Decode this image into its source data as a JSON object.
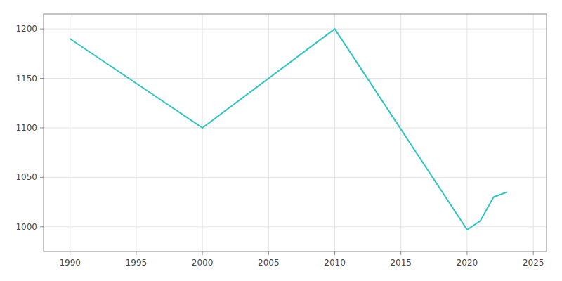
{
  "chart_data": {
    "type": "line",
    "x": [
      1990,
      2000,
      2010,
      2020,
      2021,
      2022,
      2023
    ],
    "values": [
      1190,
      1100,
      1200,
      997,
      1006,
      1030,
      1035
    ],
    "color": "#2ec4c4",
    "xlim": [
      1988,
      2026
    ],
    "ylim": [
      975,
      1215
    ],
    "xticks": [
      1990,
      1995,
      2000,
      2005,
      2010,
      2015,
      2020,
      2025
    ],
    "yticks": [
      1000,
      1050,
      1100,
      1150,
      1200
    ],
    "grid": true
  }
}
